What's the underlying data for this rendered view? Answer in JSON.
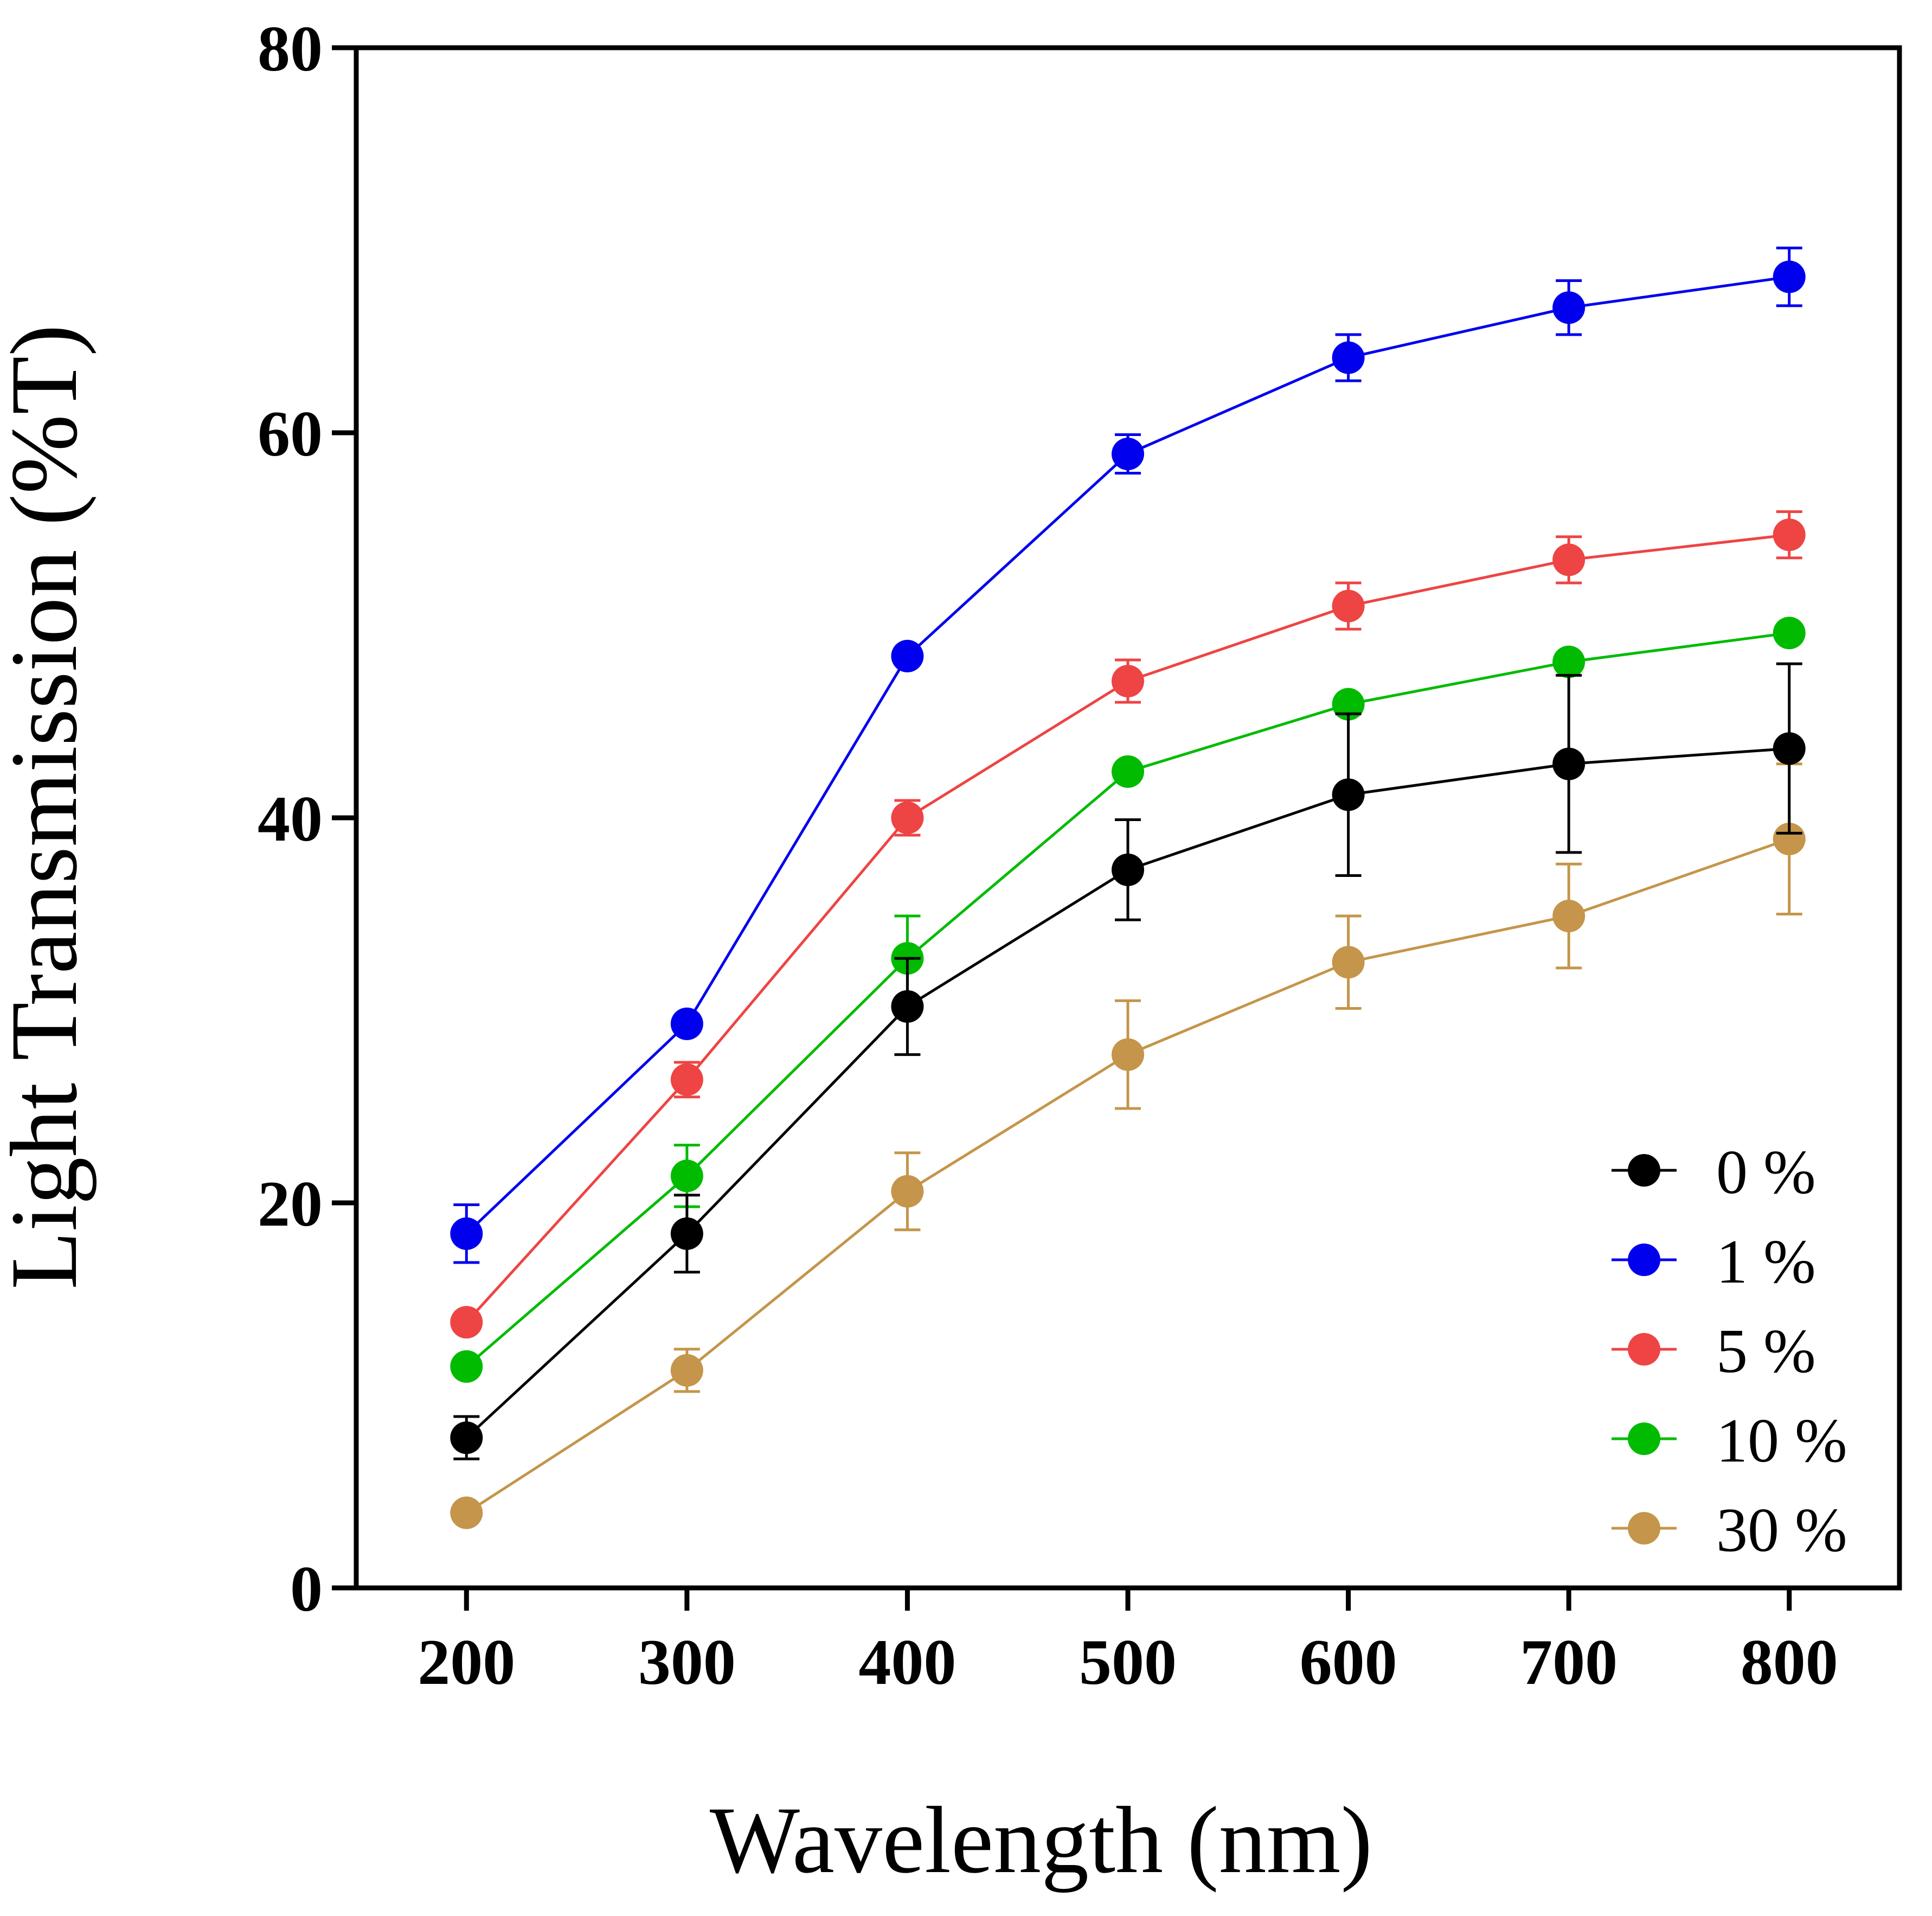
{
  "chart_data": {
    "type": "line",
    "title": "",
    "xlabel": "Wavelength (nm)",
    "ylabel": "Light Transmission (%T)",
    "xlim": [
      150,
      850
    ],
    "ylim": [
      0,
      80
    ],
    "x": [
      200,
      300,
      400,
      500,
      600,
      700,
      800
    ],
    "x_tick_labels": [
      "200",
      "300",
      "400",
      "500",
      "600",
      "700",
      "800"
    ],
    "y_ticks": [
      0,
      20,
      40,
      60,
      80
    ],
    "y_tick_labels": [
      "0",
      "20",
      "40",
      "60",
      "80"
    ],
    "grid": false,
    "legend_position": "bottom-right",
    "series": [
      {
        "name": "0 %",
        "color": "#000000",
        "values": [
          7.8,
          18.4,
          30.2,
          37.3,
          41.2,
          42.8,
          43.6
        ],
        "errors": [
          1.1,
          2.0,
          2.5,
          2.6,
          4.2,
          4.6,
          4.4
        ]
      },
      {
        "name": "1 %",
        "color": "#0000EE",
        "values": [
          18.4,
          29.3,
          48.4,
          58.9,
          63.9,
          66.5,
          68.1
        ],
        "errors": [
          1.5,
          0.0,
          0.0,
          1.0,
          1.2,
          1.4,
          1.5
        ]
      },
      {
        "name": "5 %",
        "color": "#EE4444",
        "values": [
          13.8,
          26.4,
          40.0,
          47.1,
          51.0,
          53.4,
          54.7
        ],
        "errors": [
          0.0,
          0.9,
          0.9,
          1.1,
          1.2,
          1.2,
          1.2
        ]
      },
      {
        "name": "10 %",
        "color": "#00BB00",
        "values": [
          11.5,
          21.4,
          32.7,
          42.4,
          45.9,
          48.1,
          49.6
        ],
        "errors": [
          0.0,
          1.6,
          2.2,
          0.0,
          0.0,
          0.0,
          0.0
        ]
      },
      {
        "name": "30 %",
        "color": "#C4954A",
        "values": [
          3.9,
          11.3,
          20.6,
          27.7,
          32.5,
          34.9,
          38.9
        ],
        "errors": [
          0.0,
          1.1,
          2.0,
          2.8,
          2.4,
          2.7,
          3.9
        ]
      }
    ]
  }
}
